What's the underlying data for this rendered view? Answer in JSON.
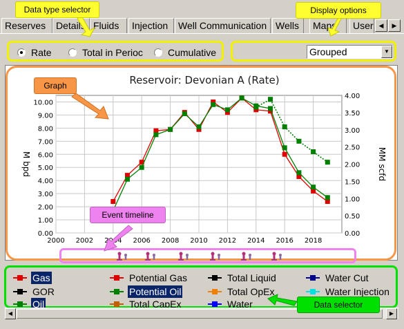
{
  "tabs": [
    "Reserves",
    "Details",
    "Fluids",
    "Injection",
    "Well Communication",
    "Wells",
    "Maps",
    "User"
  ],
  "data_type": {
    "options": [
      "Rate",
      "Total in Perioc",
      "Cumulative"
    ],
    "selected": "Rate"
  },
  "display": {
    "selected": "Grouped"
  },
  "annotations": {
    "data_type_selector": "Data type selector",
    "display_options": "Display options",
    "graph": "Graph",
    "event_timeline": "Event timeline",
    "data_selector": "Data selector"
  },
  "legend": [
    {
      "label": "Gas",
      "color": "#e00000",
      "selected": true
    },
    {
      "label": "Potential Gas",
      "color": "#e00000",
      "selected": false
    },
    {
      "label": "Total Liquid",
      "color": "#000000",
      "selected": false
    },
    {
      "label": "Water Cut",
      "color": "#00008b",
      "selected": false
    },
    {
      "label": "GOR",
      "color": "#000000",
      "selected": false
    },
    {
      "label": "Potential Oil",
      "color": "#008000",
      "selected": true
    },
    {
      "label": "Total OpEx",
      "color": "#f08000",
      "selected": false
    },
    {
      "label": "Water Injection",
      "color": "#00e0e0",
      "selected": false
    },
    {
      "label": "Oil",
      "color": "#008000",
      "selected": true
    },
    {
      "label": "Total CapEx",
      "color": "#c06000",
      "selected": false
    },
    {
      "label": "Water",
      "color": "#0000ff",
      "selected": false
    }
  ],
  "event_icons": [
    "pump-jack-icon",
    "pump-jack-icon",
    "pump-jack-icon",
    "pump-jack-icon",
    "pump-jack-icon",
    "pump-jack-icon"
  ],
  "chart_data": {
    "type": "line",
    "title": "Reservoir: Devonian A (Rate)",
    "ylabel_left": "M bpd",
    "ylabel_right": "MM scfd",
    "x_ticks": [
      "2000",
      "2002",
      "2004",
      "2006",
      "2008",
      "2010",
      "2012",
      "2014",
      "2016",
      "2018"
    ],
    "xlim": [
      2000,
      2020
    ],
    "ylim_left": [
      0,
      10.5
    ],
    "ylim_right": [
      0,
      4.0
    ],
    "y_ticks_left": [
      "0.00",
      "1.00",
      "2.00",
      "3.00",
      "4.00",
      "5.00",
      "6.00",
      "7.00",
      "8.00",
      "9.00",
      "10.00"
    ],
    "y_ticks_right": [
      "0.00",
      "0.50",
      "1.00",
      "1.50",
      "2.00",
      "2.50",
      "3.00",
      "3.50",
      "4.00"
    ],
    "grid": true,
    "x": [
      2004,
      2005,
      2006,
      2007,
      2008,
      2009,
      2010,
      2011,
      2012,
      2013,
      2014,
      2015,
      2016,
      2017,
      2018,
      2019
    ],
    "series": [
      {
        "name": "Gas",
        "color": "#e00000",
        "style": "solid",
        "values": [
          2.4,
          4.4,
          5.4,
          7.8,
          7.9,
          9.2,
          7.9,
          10.0,
          9.2,
          10.3,
          9.4,
          9.3,
          6.0,
          4.3,
          3.2,
          2.4
        ]
      },
      {
        "name": "Oil",
        "color": "#008000",
        "style": "solid",
        "values": [
          1.7,
          4.1,
          5.0,
          7.5,
          7.9,
          9.1,
          8.1,
          9.8,
          9.4,
          10.3,
          9.7,
          9.5,
          6.5,
          4.6,
          3.5,
          2.7
        ]
      },
      {
        "name": "Potential Oil",
        "color": "#008000",
        "style": "dotted",
        "x": [
          2014,
          2015,
          2016,
          2017,
          2018,
          2019
        ],
        "values": [
          9.6,
          10.2,
          8.1,
          7.0,
          6.2,
          5.4
        ]
      }
    ]
  }
}
